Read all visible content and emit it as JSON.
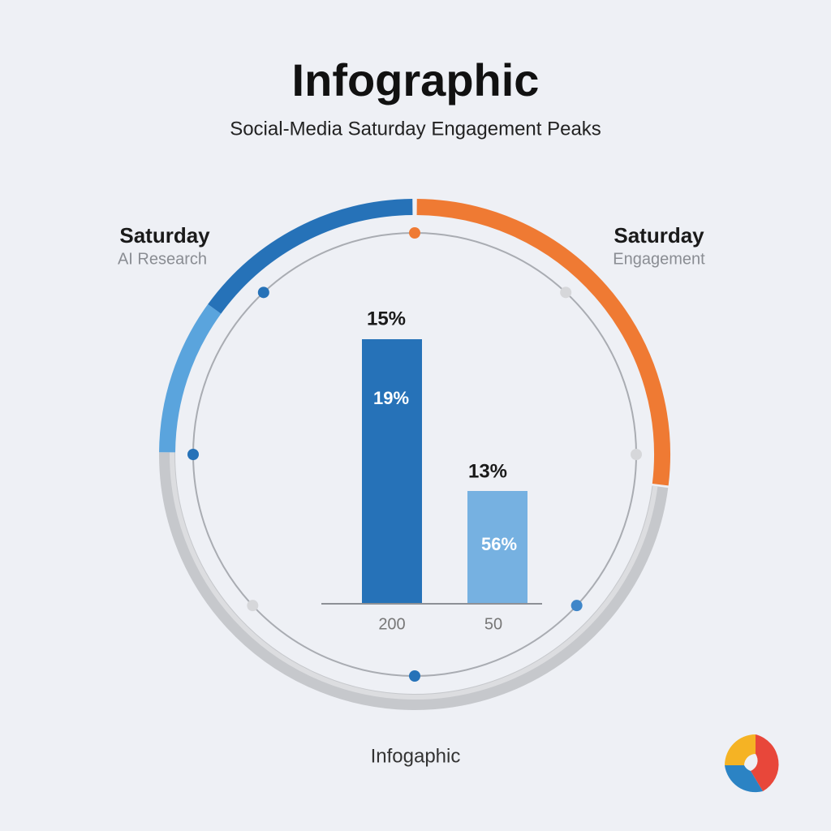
{
  "header": {
    "title": "Infographic",
    "subtitle": "Social-Media Saturday Engagement Peaks"
  },
  "left_label": {
    "title": "Saturday",
    "subtitle": "AI Research"
  },
  "right_label": {
    "title": "Saturday",
    "subtitle": "Engagement"
  },
  "bars": [
    {
      "top_label": "15%",
      "inner_label": "19%",
      "category": "200"
    },
    {
      "top_label": "13%",
      "inner_label": "56%",
      "category": "50"
    }
  ],
  "footer": {
    "text": "Infogaphic"
  }
}
